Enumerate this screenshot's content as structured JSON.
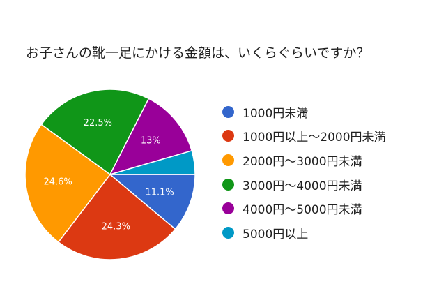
{
  "chart_data": {
    "type": "pie",
    "title": "お子さんの靴一足にかける金額は、いくらぐらいですか？",
    "legend_position": "right",
    "slices": [
      {
        "label": "1000円未満",
        "value": 11.1,
        "value_label": "11.1%",
        "color": "#3366cc"
      },
      {
        "label": "1000円以上〜2000円未満",
        "value": 24.3,
        "value_label": "24.3%",
        "color": "#dc3912"
      },
      {
        "label": "2000円〜3000円未満",
        "value": 24.6,
        "value_label": "24.6%",
        "color": "#ff9900"
      },
      {
        "label": "3000円〜4000円未満",
        "value": 22.5,
        "value_label": "22.5%",
        "color": "#109618"
      },
      {
        "label": "4000円〜5000円未満",
        "value": 13,
        "value_label": "13%",
        "color": "#990099"
      },
      {
        "label": "5000円以上",
        "value": 4.5,
        "value_label": "",
        "color": "#0099c6"
      }
    ]
  }
}
